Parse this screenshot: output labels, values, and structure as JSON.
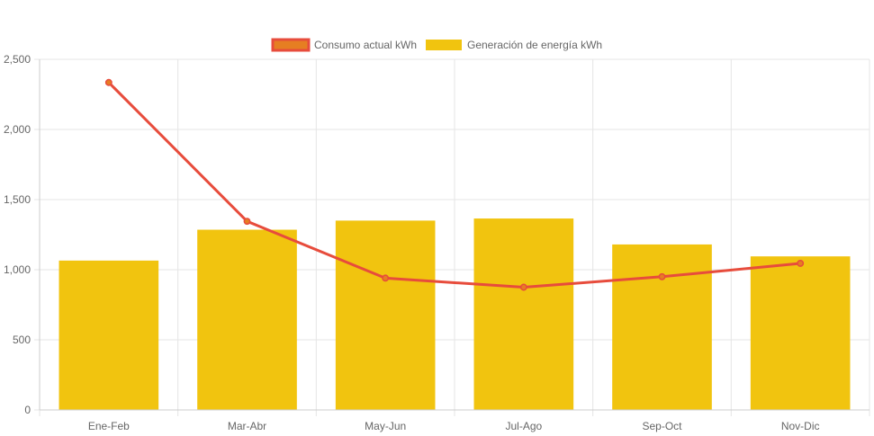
{
  "chart_data": {
    "type": "bar",
    "title": "",
    "xlabel": "",
    "ylabel": "",
    "categories": [
      "Ene-Feb",
      "Mar-Abr",
      "May-Jun",
      "Jul-Ago",
      "Sep-Oct",
      "Nov-Dic"
    ],
    "ylim": [
      0,
      2500
    ],
    "yticks": [
      0,
      500,
      1000,
      1500,
      2000,
      2500
    ],
    "ytick_labels": [
      "0",
      "500",
      "1,000",
      "1,500",
      "2,000",
      "2,500"
    ],
    "grid": true,
    "legend_position": "top-center",
    "series": [
      {
        "name": "Consumo actual kWh",
        "type": "line",
        "color": "#E74C3C",
        "legend_fill": "#E67E22",
        "values": [
          2335,
          1345,
          940,
          875,
          950,
          1045
        ]
      },
      {
        "name": "Generación de energía kWh",
        "type": "bar",
        "color": "#F1C40F",
        "values": [
          1065,
          1285,
          1350,
          1365,
          1180,
          1095
        ]
      }
    ]
  }
}
